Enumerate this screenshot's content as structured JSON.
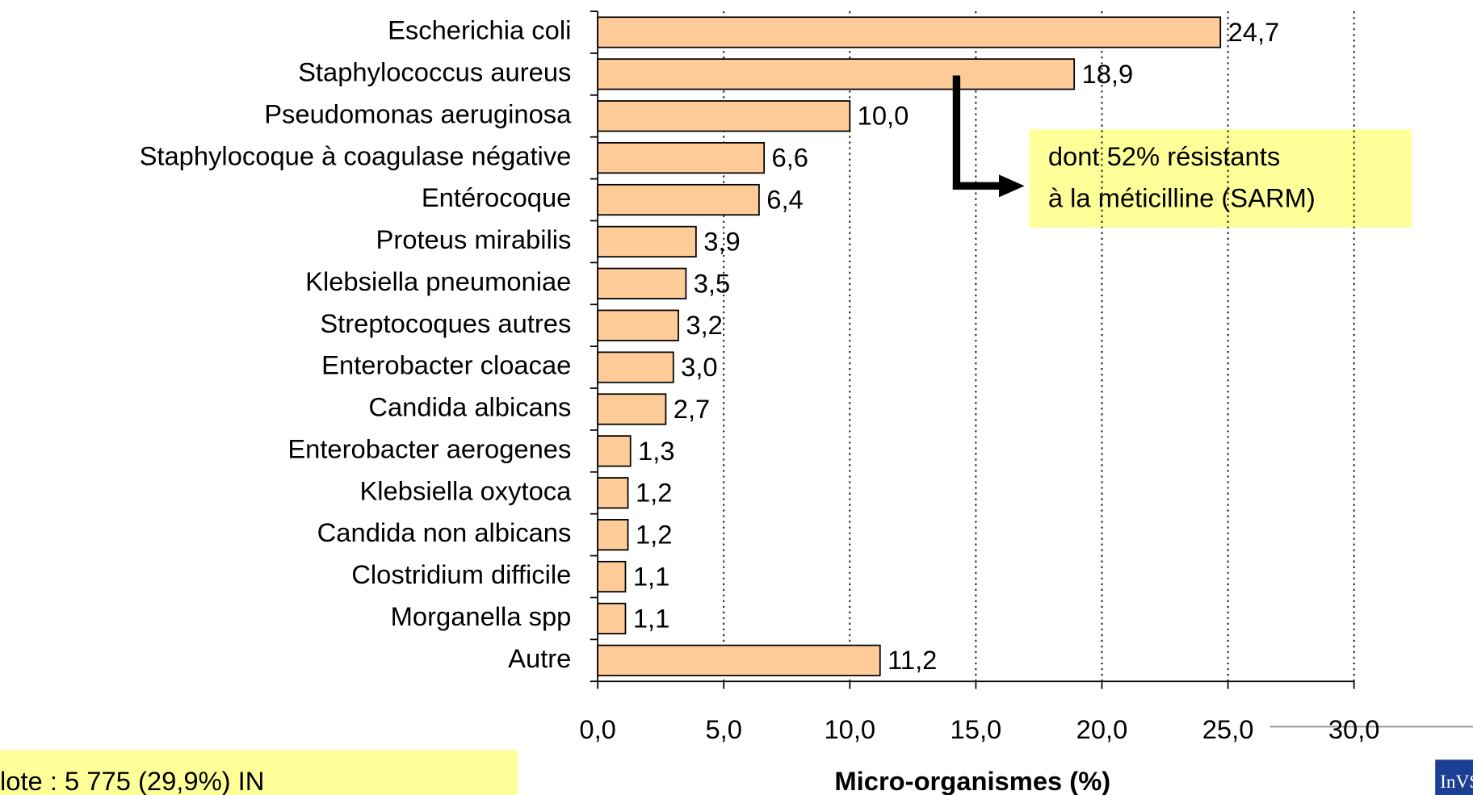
{
  "chart_data": {
    "type": "bar",
    "orientation": "horizontal",
    "categories": [
      "Escherichia coli",
      "Staphylococcus aureus",
      "Pseudomonas aeruginosa",
      "Staphylocoque à coagulase négative",
      "Entérocoque",
      "Proteus mirabilis",
      "Klebsiella pneumoniae",
      "Streptocoques autres",
      "Enterobacter cloacae",
      "Candida albicans",
      "Enterobacter aerogenes",
      "Klebsiella oxytoca",
      "Candida non albicans",
      "Clostridium difficile",
      "Morganella spp",
      "Autre"
    ],
    "values": [
      24.7,
      18.9,
      10.0,
      6.6,
      6.4,
      3.9,
      3.5,
      3.2,
      3.0,
      2.7,
      1.3,
      1.2,
      1.2,
      1.1,
      1.1,
      11.2
    ],
    "value_labels": [
      "24,7",
      "18,9",
      "10,0",
      "6,6",
      "6,4",
      "3,9",
      "3,5",
      "3,2",
      "3,0",
      "2,7",
      "1,3",
      "1,2",
      "1,2",
      "1,1",
      "1,1",
      "11,2"
    ],
    "color": "#ffcc99",
    "xlim": [
      0,
      30
    ],
    "xticks": [
      {
        "value": 0,
        "label": "0,0"
      },
      {
        "value": 5,
        "label": "5,0"
      },
      {
        "value": 10,
        "label": "10,0"
      },
      {
        "value": 15,
        "label": "15,0"
      },
      {
        "value": 20,
        "label": "20,0"
      },
      {
        "value": 25,
        "label": "25,0"
      },
      {
        "value": 30,
        "label": "30,0"
      }
    ],
    "grid": true,
    "xlabel": "Micro-organismes (%)",
    "annotation": [
      "dont 52% résistants",
      "à la méticilline (SARM)"
    ],
    "note": "lote : 5 775 (29,9%) IN",
    "logo": "InVS"
  }
}
